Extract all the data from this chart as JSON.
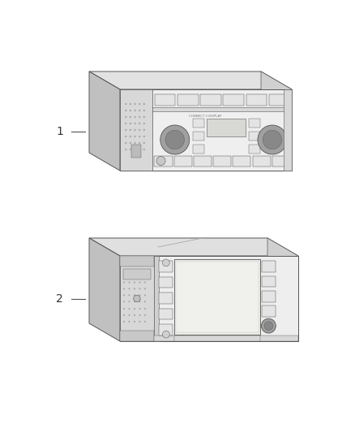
{
  "bg_color": "#ffffff",
  "fig_width": 4.38,
  "fig_height": 5.33,
  "dpi": 100,
  "lc": "#555555",
  "tc": "#333333",
  "face_color": "#f2f2f2",
  "top_color": "#e0e0e0",
  "side_color": "#c8c8c8",
  "grille_color": "#d5d5d5",
  "btn_color": "#e8e8e8",
  "knob_color": "#999999",
  "screen_color": "#e0e0dc",
  "dark_panel": "#d8d8d8"
}
